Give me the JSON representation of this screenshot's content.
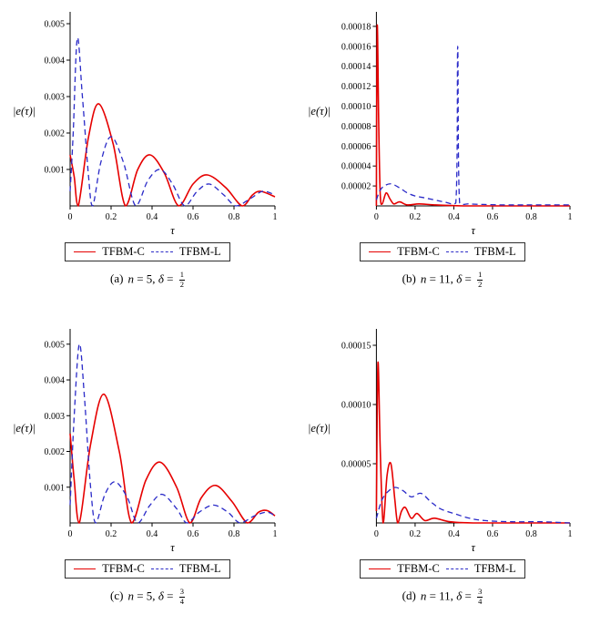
{
  "legend_box": {
    "entries": [
      "TFBM-C",
      "TFBM-L"
    ]
  },
  "colors": {
    "tfbm_c": "#e60000",
    "tfbm_l": "#2a2ac8",
    "axis": "#000000"
  },
  "chart_data": [
    {
      "type": "line",
      "id": "a",
      "ylabel": "|e(τ)|",
      "xlabel": "τ",
      "xlim": [
        0,
        1
      ],
      "ylim": [
        0,
        0.0052
      ],
      "grid": false,
      "legend_position": "below",
      "xticks": [
        0,
        0.2,
        0.4,
        0.6,
        0.8,
        1
      ],
      "xtick_labels": [
        "0",
        "0.2",
        "0.4",
        "0.6",
        "0.8",
        "1"
      ],
      "yticks": [
        0.001,
        0.002,
        0.003,
        0.004,
        0.005
      ],
      "ytick_labels": [
        "0.001",
        "0.002",
        "0.003",
        "0.004",
        "0.005"
      ],
      "series": [
        {
          "name": "TFBM-C",
          "color": "#e60000",
          "style": "solid",
          "x": [
            0,
            0.02,
            0.04,
            0.09,
            0.14,
            0.21,
            0.27,
            0.33,
            0.39,
            0.46,
            0.53,
            0.6,
            0.67,
            0.76,
            0.84,
            0.89,
            0.93,
            1
          ],
          "y": [
            0.0014,
            0.0008,
            0,
            0.0019,
            0.0028,
            0.0017,
            0,
            0.001,
            0.0014,
            0.0009,
            0,
            0.0006,
            0.00085,
            0.0005,
            0,
            0.0003,
            0.0004,
            0.00025
          ]
        },
        {
          "name": "TFBM-L",
          "color": "#2a2ac8",
          "style": "dashed",
          "x": [
            0,
            0.015,
            0.035,
            0.06,
            0.09,
            0.11,
            0.15,
            0.2,
            0.26,
            0.32,
            0.38,
            0.44,
            0.5,
            0.56,
            0.62,
            0.68,
            0.75,
            0.81,
            0.88,
            0.94,
            1
          ],
          "y": [
            0.0004,
            0.002,
            0.0046,
            0.003,
            0.0008,
            0,
            0.0012,
            0.0019,
            0.0012,
            0,
            0.0007,
            0.001,
            0.0006,
            0,
            0.0004,
            0.0006,
            0.0003,
            0,
            0.0002,
            0.0004,
            0.0003
          ]
        }
      ],
      "caption": {
        "index": "(a)",
        "n_var": "n",
        "n_rest": " = 5, ",
        "d_var": "δ",
        "d_rest": " = ",
        "frac_num": "1",
        "frac_den": "2"
      }
    },
    {
      "type": "line",
      "id": "b",
      "ylabel": "|e(τ)|",
      "xlabel": "τ",
      "xlim": [
        0,
        1
      ],
      "ylim": [
        0,
        0.00019
      ],
      "grid": false,
      "legend_position": "below",
      "xticks": [
        0,
        0.2,
        0.4,
        0.6,
        0.8,
        1
      ],
      "xtick_labels": [
        "0",
        "0.2",
        "0.4",
        "0.6",
        "0.8",
        "1"
      ],
      "yticks": [
        2e-05,
        4e-05,
        6e-05,
        8e-05,
        0.0001,
        0.00012,
        0.00014,
        0.00016,
        0.00018
      ],
      "ytick_labels": [
        "0.00002",
        "0.00004",
        "0.00006",
        "0.00008",
        "0.00010",
        "0.00012",
        "0.00014",
        "0.00016",
        "0.00018"
      ],
      "series": [
        {
          "name": "TFBM-C",
          "color": "#e60000",
          "style": "solid",
          "x": [
            0,
            0.004,
            0.012,
            0.02,
            0.03,
            0.05,
            0.07,
            0.09,
            0.12,
            0.16,
            0.22,
            0.3,
            0.45,
            0.7,
            1
          ],
          "y": [
            0,
            0.00018,
            8e-05,
            1e-05,
            2e-06,
            1.3e-05,
            7e-06,
            2e-06,
            4e-06,
            1e-06,
            2e-06,
            1e-06,
            0,
            0,
            0
          ]
        },
        {
          "name": "TFBM-L",
          "color": "#2a2ac8",
          "style": "dashed",
          "x": [
            0,
            0.02,
            0.05,
            0.08,
            0.12,
            0.16,
            0.2,
            0.25,
            0.3,
            0.35,
            0.41,
            0.42,
            0.43,
            0.48,
            0.55,
            0.65,
            0.8,
            1
          ],
          "y": [
            6e-06,
            1.6e-05,
            2.1e-05,
            2.2e-05,
            1.8e-05,
            1.3e-05,
            1e-05,
            8e-06,
            6e-06,
            4e-06,
            3e-06,
            0.00016,
            3e-06,
            2e-06,
            1.5e-06,
            1e-06,
            1e-06,
            1e-06
          ]
        }
      ],
      "caption": {
        "index": "(b)",
        "n_var": "n",
        "n_rest": " = 11, ",
        "d_var": "δ",
        "d_rest": " = ",
        "frac_num": "1",
        "frac_den": "2"
      }
    },
    {
      "type": "line",
      "id": "c",
      "ylabel": "|e(τ)|",
      "xlabel": "τ",
      "xlim": [
        0,
        1
      ],
      "ylim": [
        0,
        0.0053
      ],
      "grid": false,
      "legend_position": "below",
      "xticks": [
        0,
        0.2,
        0.4,
        0.6,
        0.8,
        1
      ],
      "xtick_labels": [
        "0",
        "0.2",
        "0.4",
        "0.6",
        "0.8",
        "1"
      ],
      "yticks": [
        0.001,
        0.002,
        0.003,
        0.004,
        0.005
      ],
      "ytick_labels": [
        "0.001",
        "0.002",
        "0.003",
        "0.004",
        "0.005"
      ],
      "series": [
        {
          "name": "TFBM-C",
          "color": "#e60000",
          "style": "solid",
          "x": [
            0,
            0.02,
            0.045,
            0.1,
            0.165,
            0.24,
            0.3,
            0.37,
            0.44,
            0.52,
            0.585,
            0.64,
            0.71,
            0.79,
            0.865,
            0.92,
            0.96,
            1
          ],
          "y": [
            0.0025,
            0.0012,
            0,
            0.0022,
            0.0036,
            0.002,
            0,
            0.0012,
            0.0017,
            0.001,
            0,
            0.0007,
            0.00105,
            0.0006,
            0,
            0.0003,
            0.00035,
            0.0002
          ]
        },
        {
          "name": "TFBM-L",
          "color": "#2a2ac8",
          "style": "dashed",
          "x": [
            0,
            0.02,
            0.045,
            0.07,
            0.1,
            0.125,
            0.17,
            0.22,
            0.28,
            0.33,
            0.39,
            0.45,
            0.52,
            0.57,
            0.63,
            0.7,
            0.77,
            0.83,
            0.9,
            0.96,
            1
          ],
          "y": [
            0.0005,
            0.003,
            0.005,
            0.0035,
            0.001,
            0,
            0.0008,
            0.00115,
            0.0007,
            0,
            0.0005,
            0.0008,
            0.0004,
            0,
            0.0003,
            0.0005,
            0.0003,
            0,
            0.0002,
            0.0003,
            0.0002
          ]
        }
      ],
      "caption": {
        "index": "(c)",
        "n_var": "n",
        "n_rest": " = 5, ",
        "d_var": "δ",
        "d_rest": " = ",
        "frac_num": "3",
        "frac_den": "4"
      }
    },
    {
      "type": "line",
      "id": "d",
      "ylabel": "|e(τ)|",
      "xlabel": "τ",
      "xlim": [
        0,
        1
      ],
      "ylim": [
        0,
        0.00016
      ],
      "grid": false,
      "legend_position": "below",
      "xticks": [
        0,
        0.2,
        0.4,
        0.6,
        0.8,
        1
      ],
      "xtick_labels": [
        "0",
        "0.2",
        "0.4",
        "0.6",
        "0.8",
        "1"
      ],
      "yticks": [
        5e-05,
        0.0001,
        0.00015
      ],
      "ytick_labels": [
        "0.00005",
        "0.00010",
        "0.00015"
      ],
      "series": [
        {
          "name": "TFBM-C",
          "color": "#e60000",
          "style": "solid",
          "x": [
            0,
            0.008,
            0.02,
            0.035,
            0.055,
            0.075,
            0.095,
            0.11,
            0.13,
            0.15,
            0.18,
            0.21,
            0.25,
            0.3,
            0.38,
            0.5,
            0.7,
            1
          ],
          "y": [
            1e-05,
            0.000135,
            6e-05,
            0,
            4e-05,
            5e-05,
            2e-05,
            0,
            1e-05,
            1.3e-05,
            4e-06,
            8e-06,
            2e-06,
            4e-06,
            1e-06,
            0,
            0,
            0
          ]
        },
        {
          "name": "TFBM-L",
          "color": "#2a2ac8",
          "style": "dashed",
          "x": [
            0,
            0.03,
            0.07,
            0.1,
            0.14,
            0.18,
            0.23,
            0.28,
            0.33,
            0.4,
            0.48,
            0.56,
            0.7,
            0.85,
            1
          ],
          "y": [
            4e-06,
            2e-05,
            2.8e-05,
            3e-05,
            2.7e-05,
            2.2e-05,
            2.5e-05,
            1.8e-05,
            1.2e-05,
            8e-06,
            4e-06,
            2e-06,
            1e-06,
            1e-06,
            0
          ]
        }
      ],
      "caption": {
        "index": "(d)",
        "n_var": "n",
        "n_rest": " = 11, ",
        "d_var": "δ",
        "d_rest": " = ",
        "frac_num": "3",
        "frac_den": "4"
      }
    }
  ]
}
